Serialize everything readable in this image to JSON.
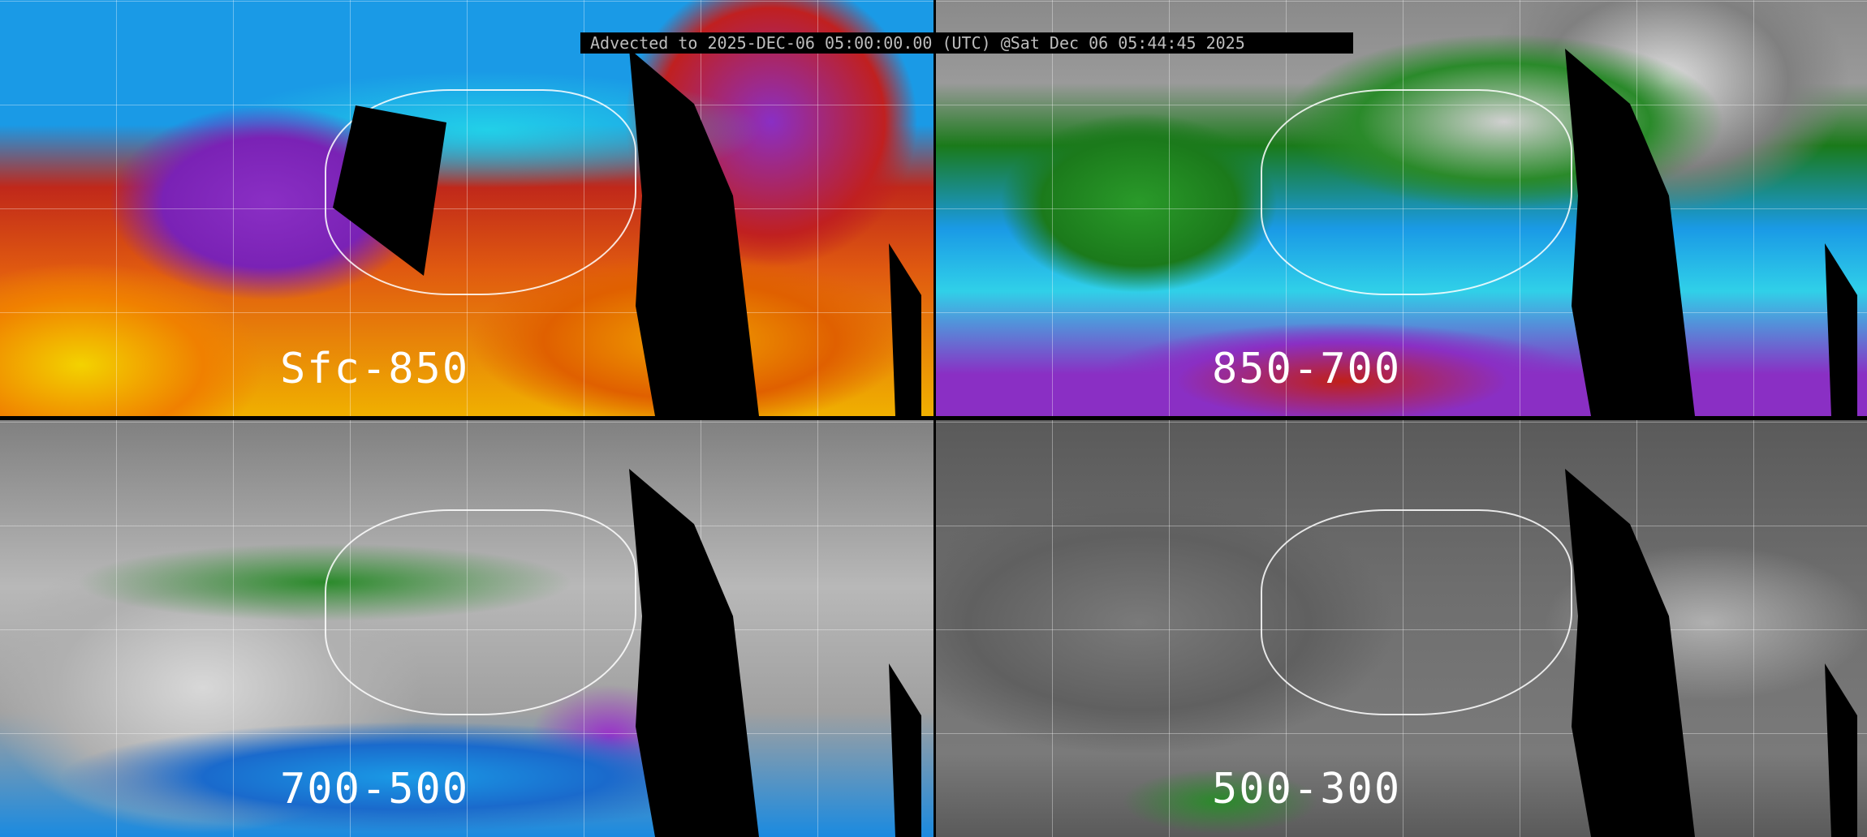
{
  "header": {
    "text": "Advected to 2025-DEC-06 05:00:00.00 (UTC) @Sat Dec 06 05:44:45 2025"
  },
  "panels": [
    {
      "label": "Sfc-850"
    },
    {
      "label": "850-700"
    },
    {
      "label": "700-500"
    },
    {
      "label": "500-300"
    }
  ],
  "colors": {
    "divider": "#000000",
    "header_bg": "#000000",
    "header_text": "#bdbdbd",
    "label_text": "#ffffff"
  }
}
